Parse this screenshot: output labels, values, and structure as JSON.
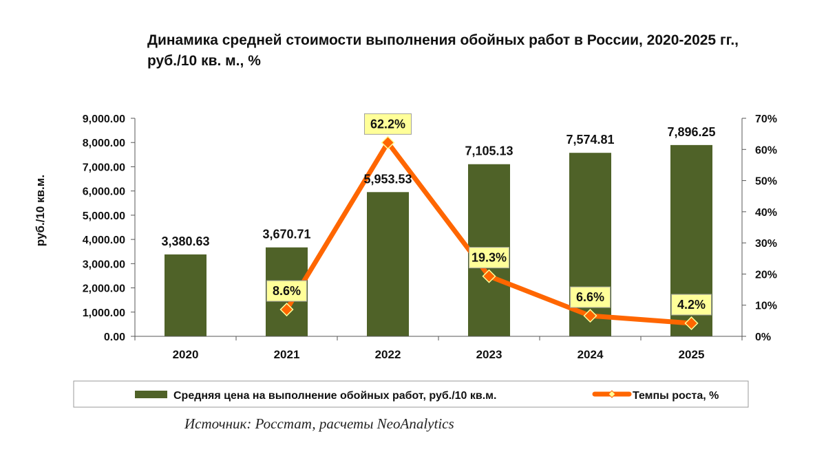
{
  "chart_data": {
    "type": "bar+line",
    "title": "Динамика средней стоимости выполнения обойных работ в России, 2020-2025 гг., руб./10 кв. м., %",
    "categories": [
      "2020",
      "2021",
      "2022",
      "2023",
      "2024",
      "2025"
    ],
    "series": [
      {
        "name": "Средняя цена на выполнение обойных работ, руб./10 кв.м.",
        "type": "bar",
        "axis": "left",
        "values": [
          3380.63,
          3670.71,
          5953.53,
          7105.13,
          7574.81,
          7896.25
        ],
        "labels": [
          "3,380.63",
          "3,670.71",
          "5,953.53",
          "7,105.13",
          "7,574.81",
          "7,896.25"
        ],
        "color": "#4f6228"
      },
      {
        "name": "Темпы роста, %",
        "type": "line",
        "axis": "right",
        "x": [
          "2021",
          "2022",
          "2023",
          "2024",
          "2025"
        ],
        "values": [
          8.6,
          62.2,
          19.3,
          6.6,
          4.2
        ],
        "labels": [
          "8.6%",
          "62.2%",
          "19.3%",
          "6.6%",
          "4.2%"
        ],
        "color": "#ff6600",
        "marker_color": "#ffff99"
      }
    ],
    "ylabel": "руб./10 кв.м.",
    "ylim": [
      0,
      9000
    ],
    "yticks": [
      0,
      1000,
      2000,
      3000,
      4000,
      5000,
      6000,
      7000,
      8000,
      9000
    ],
    "ytick_labels": [
      "0.00",
      "1,000.00",
      "2,000.00",
      "3,000.00",
      "4,000.00",
      "5,000.00",
      "6,000.00",
      "7,000.00",
      "8,000.00",
      "9,000.00"
    ],
    "y2lim": [
      0,
      70
    ],
    "y2ticks": [
      0,
      10,
      20,
      30,
      40,
      50,
      60,
      70
    ],
    "y2tick_labels": [
      "0%",
      "10%",
      "20%",
      "30%",
      "40%",
      "50%",
      "60%",
      "70%"
    ],
    "legend": "bottom",
    "grid": false,
    "source": "Источник: Росстат, расчеты NeoAnalytics"
  }
}
